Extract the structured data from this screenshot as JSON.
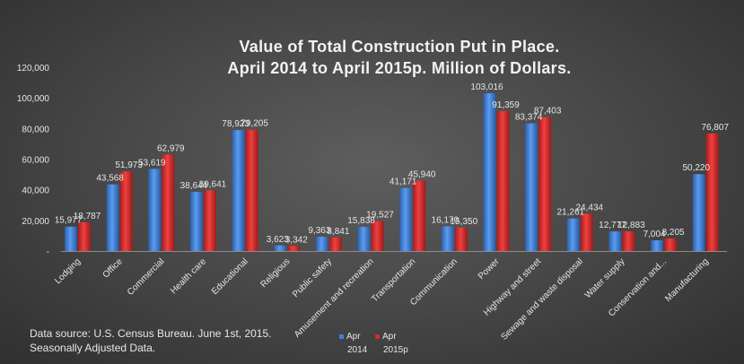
{
  "title_line_1": "Value of Total Construction Put in Place.",
  "title_line_2": "April 2014 to April 2015p. Million of Dollars.",
  "source_line_1": "Data source: U.S. Census Bureau. June 1st, 2015.",
  "source_line_2": "Seasonally Adjusted Data.",
  "colors": {
    "series_2014": "#3f7fd4",
    "series_2015p": "#d42a2a",
    "text": "#e6e6e6"
  },
  "chart_data": {
    "type": "bar",
    "title": "Value of Total Construction Put in Place. April 2014 to April 2015p. Million of Dollars.",
    "categories": [
      "Lodging",
      "Office",
      "Commercial",
      "Health care",
      "Educational",
      "Religious",
      "Public safety",
      "Amusement and recreation",
      "Transportation",
      "Communication",
      "Power",
      "Highway and street",
      "Sewage and waste disposal",
      "Water supply",
      "Conservation and...",
      "Manufacturing"
    ],
    "series": [
      {
        "name": "Apr 2014",
        "legend_line_1": "Apr",
        "legend_line_2": "2014",
        "values": [
          15977,
          43568,
          53619,
          38644,
          78923,
          3623,
          9363,
          15838,
          41171,
          16170,
          103016,
          83374,
          21261,
          12777,
          7004,
          50220
        ],
        "labels": [
          "15,977",
          "43,568",
          "53,619",
          "38,644",
          "78,923",
          "3,623",
          "9,363",
          "15,838",
          "41,171",
          "16,170",
          "103,016",
          "83,374",
          "21,261",
          "12,777",
          "7,004",
          "50,220"
        ]
      },
      {
        "name": "Apr 2015p",
        "legend_line_1": "Apr",
        "legend_line_2": "2015p",
        "values": [
          18787,
          51973,
          62979,
          39641,
          79205,
          3342,
          8841,
          19527,
          45940,
          15350,
          91359,
          87403,
          24434,
          12883,
          8205,
          76807
        ],
        "labels": [
          "18,787",
          "51,973",
          "62,979",
          "39,641",
          "79,205",
          "3,342",
          "8,841",
          "19,527",
          "45,940",
          "15,350",
          "91,359",
          "87,403",
          "24,434",
          "12,883",
          "8,205",
          "76,807"
        ]
      }
    ],
    "ylim": [
      0,
      120000
    ],
    "yticks": [
      0,
      20000,
      40000,
      60000,
      80000,
      100000,
      120000
    ],
    "ytick_labels": [
      "-",
      "20,000",
      "40,000",
      "60,000",
      "80,000",
      "100,000",
      "120,000"
    ],
    "grid": false,
    "legend": "bottom"
  }
}
